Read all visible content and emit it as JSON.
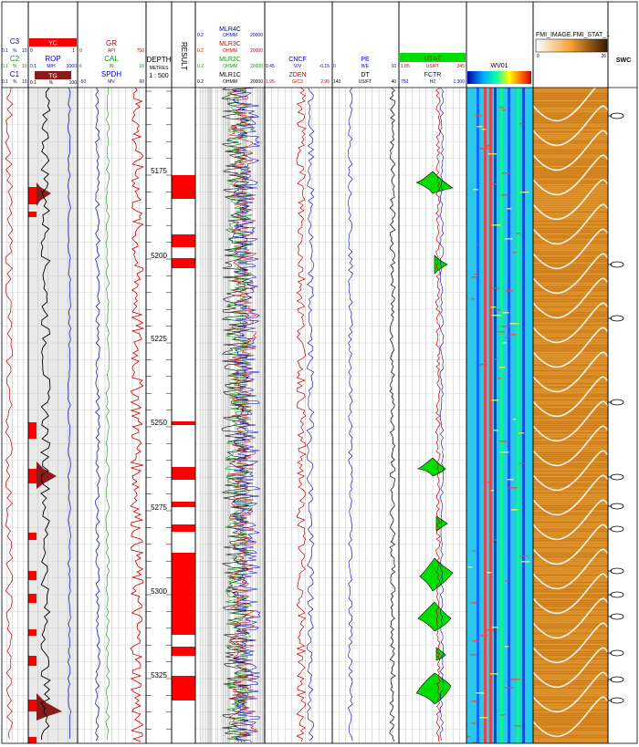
{
  "colors": {
    "red": "#ff0000",
    "blue": "#0000cc",
    "green": "#009900",
    "black": "#000000",
    "fill_green": "#00dd00",
    "wave_cyan": "#22c8e6",
    "fmi_orange": "#d9891f",
    "maroon": "#8b1a1a",
    "gray_header": "#d8d8d8"
  },
  "tracks": {
    "gas": {
      "curves": [
        {
          "name": "C3",
          "color": "#0000cc",
          "min": "0.1",
          "unit": "%",
          "max": "10"
        },
        {
          "name": "C2",
          "color": "#009900",
          "min": "0.1",
          "unit": "%",
          "max": "10"
        },
        {
          "name": "C1",
          "color": "#0000cc",
          "min": "0.1",
          "unit": "%",
          "max": "10"
        }
      ]
    },
    "drilling": {
      "yc": {
        "name": "YC",
        "min": "0",
        "max": "1"
      },
      "rop": {
        "name": "ROP",
        "min": "0.1",
        "unit": "M/H",
        "max": "1000"
      },
      "tg": {
        "name": "TG",
        "min": "0.1",
        "unit": "%",
        "max": "100"
      }
    },
    "gr_cal": {
      "gr": {
        "name": "GR",
        "min": "0",
        "unit": "API",
        "max": "750"
      },
      "cal": {
        "name": "CAL",
        "min": "6",
        "unit": "IN",
        "max": "16"
      },
      "spdh": {
        "name": "SPDH",
        "min": "-50",
        "unit": "MV",
        "max": "60"
      }
    },
    "depth": {
      "title": "DEPTH",
      "unit": "METRES",
      "scale": "1 : 500",
      "labels": [
        "5175",
        "5200",
        "5225",
        "5250",
        "5275",
        "5300",
        "5325"
      ]
    },
    "result": {
      "title": "RESULT"
    },
    "resistivity": {
      "curves": [
        {
          "name": "MLR4C",
          "min": "0.2",
          "unit": "OHMM",
          "max": "20000"
        },
        {
          "name": "MLR3C",
          "min": "0.2",
          "unit": "OHMM",
          "max": "20000"
        },
        {
          "name": "MLR2C",
          "min": "0.2",
          "unit": "OHMM",
          "max": "20000"
        },
        {
          "name": "MLR1C",
          "min": "0.2",
          "unit": "OHMM",
          "max": "20000"
        }
      ]
    },
    "porosity": {
      "cncf": {
        "name": "CNCF",
        "min": "0.45",
        "unit": "V/V",
        "max": "-0.15"
      },
      "zden": {
        "name": "ZDEN",
        "min": "1.95",
        "unit": "G/C3",
        "max": "2.95"
      }
    },
    "sonic": {
      "pe": {
        "name": "PE",
        "min": "0",
        "unit": "B/E",
        "max": "10"
      },
      "dt": {
        "name": "DT",
        "min": "140",
        "unit": "US/FT",
        "max": "40"
      }
    },
    "dtst": {
      "dtst": {
        "name": "DTST",
        "min": "1.85",
        "unit": "US/FT",
        "max": "345"
      },
      "fctr": {
        "name": "FCTR",
        "min": "750",
        "unit": "HZ",
        "max": "1:300"
      }
    },
    "waveform": {
      "title": "WV01"
    },
    "fmi": {
      "title": "FMI_IMAGE.FMI_STAT_1",
      "min": "0",
      "max": "26"
    },
    "swc": {
      "title": "SWC"
    }
  }
}
